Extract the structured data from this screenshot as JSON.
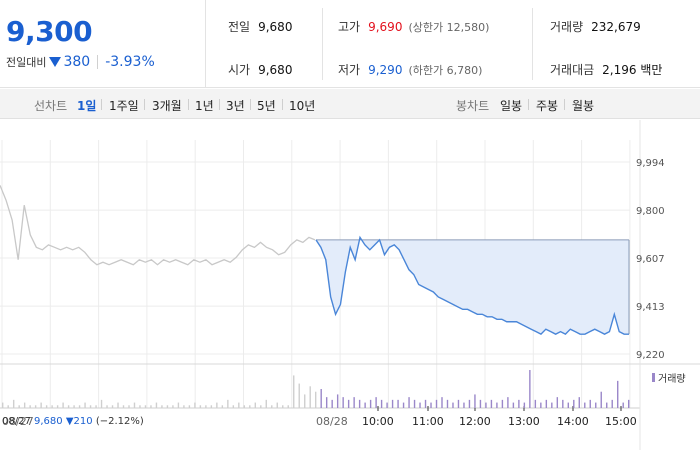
{
  "summary": {
    "price": "9,300",
    "change_label": "전일대비",
    "change_value": "380",
    "change_rate": "-3.93%",
    "metrics": {
      "prev_close": {
        "label": "전일",
        "value": "9,680"
      },
      "open": {
        "label": "시가",
        "value": "9,680"
      },
      "high": {
        "label": "고가",
        "value": "9,690",
        "sub": "(상한가 12,580)"
      },
      "low": {
        "label": "저가",
        "value": "9,290",
        "sub": "(하한가 6,780)"
      },
      "volume": {
        "label": "거래량",
        "value": "232,679"
      },
      "trade_amount": {
        "label": "거래대금",
        "value": "2,196 백만"
      }
    },
    "colors": {
      "up": "#e3101c",
      "down": "#1a5fd0"
    }
  },
  "period_bar": {
    "line_chart_label": "선차트",
    "periods": [
      "1일",
      "1주일",
      "3개월",
      "1년",
      "3년",
      "5년",
      "10년"
    ],
    "active_period": "1일",
    "candle_chart_label": "봉차트",
    "candle_periods": [
      "일봉",
      "주봉",
      "월봉"
    ]
  },
  "chart_data": {
    "type": "line",
    "y_ticks": [
      "9,994",
      "9,800",
      "9,607",
      "9,413",
      "9,220"
    ],
    "ylim": [
      9220,
      9994
    ],
    "reference_price": 9680,
    "x_labels": [
      "08/27",
      "08/28",
      "10:00",
      "11:00",
      "12:00",
      "13:00",
      "14:00",
      "15:00"
    ],
    "series": [
      {
        "values": [
          9900,
          9840,
          9760,
          9600,
          9820,
          9700,
          9650,
          9640,
          9660,
          9650,
          9640,
          9650,
          9640,
          9650,
          9630,
          9600,
          9580,
          9590,
          9580,
          9590,
          9600,
          9590,
          9580,
          9600,
          9590,
          9600,
          9580,
          9600,
          9590,
          9600,
          9590,
          9580,
          9600,
          9590,
          9600,
          9580,
          9590,
          9600,
          9590,
          9610,
          9640,
          9660,
          9650,
          9670,
          9650,
          9640,
          9620,
          9630,
          9660,
          9680,
          9670,
          9690,
          9680
        ]
      },
      {
        "values": [
          9680,
          9650,
          9600,
          9450,
          9380,
          9420,
          9550,
          9650,
          9600,
          9690,
          9660,
          9640,
          9660,
          9680,
          9620,
          9650,
          9660,
          9640,
          9600,
          9560,
          9540,
          9500,
          9490,
          9480,
          9470,
          9450,
          9440,
          9430,
          9420,
          9410,
          9400,
          9400,
          9390,
          9380,
          9380,
          9370,
          9370,
          9360,
          9360,
          9350,
          9350,
          9350,
          9340,
          9330,
          9320,
          9310,
          9300,
          9320,
          9310,
          9300,
          9310,
          9300,
          9320,
          9310,
          9300,
          9300,
          9310,
          9320,
          9310,
          9300,
          9310,
          9380,
          9310,
          9300,
          9300
        ]
      }
    ],
    "volume": [
      2,
      1,
      3,
      1,
      2,
      1,
      1,
      2,
      1,
      1,
      1,
      2,
      1,
      1,
      1,
      2,
      1,
      1,
      3,
      1,
      1,
      2,
      1,
      1,
      2,
      1,
      1,
      1,
      2,
      1,
      1,
      1,
      2,
      1,
      1,
      2,
      1,
      1,
      1,
      2,
      1,
      3,
      1,
      2,
      1,
      1,
      2,
      1,
      3,
      1,
      2,
      1,
      1,
      12,
      9,
      5,
      8,
      6,
      7,
      4,
      3,
      5,
      4,
      3,
      4,
      3,
      2,
      3,
      4,
      3,
      2,
      3,
      3,
      2,
      4,
      3,
      2,
      3,
      2,
      3,
      4,
      3,
      2,
      3,
      2,
      3,
      5,
      3,
      2,
      3,
      2,
      3,
      4,
      2,
      3,
      2,
      14,
      3,
      2,
      3,
      2,
      4,
      3,
      2,
      3,
      4,
      2,
      3,
      2,
      6,
      2,
      3,
      10,
      2,
      3
    ],
    "legend": "거래량",
    "footer": {
      "date": "08/27",
      "price": "9,680",
      "change": "▼210",
      "rate": "(−2.12%)"
    }
  }
}
